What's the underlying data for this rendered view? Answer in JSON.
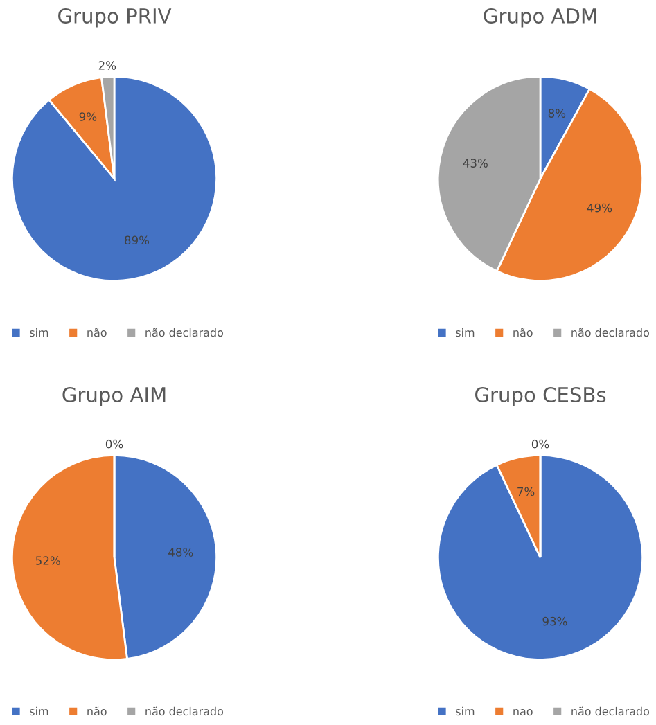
{
  "chart_data": [
    {
      "type": "pie",
      "title": "Grupo PRIV",
      "categories": [
        "sim",
        "não",
        "não declarado"
      ],
      "values": [
        89,
        9,
        2
      ],
      "colors": [
        "#4472c4",
        "#ed7d31",
        "#a5a5a5"
      ],
      "value_labels": [
        "89%",
        "9%",
        "2%"
      ],
      "legend": "bottom"
    },
    {
      "type": "pie",
      "title": "Grupo ADM",
      "categories": [
        "sim",
        "não",
        "não declarado"
      ],
      "values": [
        8,
        49,
        43
      ],
      "colors": [
        "#4472c4",
        "#ed7d31",
        "#a5a5a5"
      ],
      "value_labels": [
        "8%",
        "49%",
        "43%"
      ],
      "legend": "bottom"
    },
    {
      "type": "pie",
      "title": "Grupo AIM",
      "categories": [
        "sim",
        "não",
        "não declarado"
      ],
      "values": [
        48,
        52,
        0
      ],
      "colors": [
        "#4472c4",
        "#ed7d31",
        "#a5a5a5"
      ],
      "value_labels": [
        "48%",
        "52%",
        "0%"
      ],
      "legend": "bottom"
    },
    {
      "type": "pie",
      "title": "Grupo CESBs",
      "categories": [
        "sim",
        "nao",
        "não declarado"
      ],
      "values": [
        93,
        7,
        0
      ],
      "colors": [
        "#4472c4",
        "#ed7d31",
        "#a5a5a5"
      ],
      "value_labels": [
        "93%",
        "7%",
        "0%"
      ],
      "legend": "bottom"
    }
  ]
}
